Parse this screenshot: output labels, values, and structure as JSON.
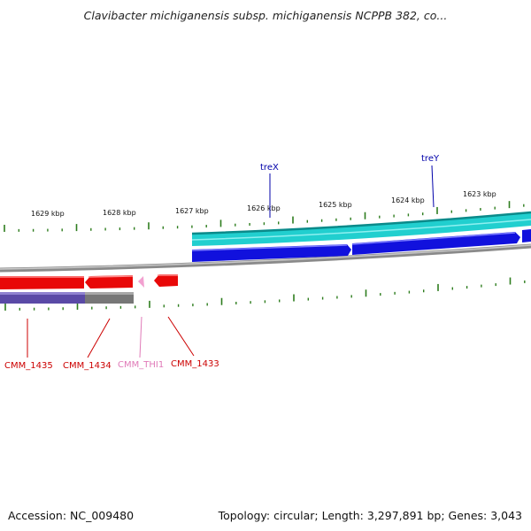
{
  "title": "Clavibacter michiganensis subsp. michiganensis NCPPB 382, co...",
  "footer": {
    "accession": "Accession: NC_009480",
    "summary": "Topology: circular; Length: 3,297,891 bp; Genes: 3,043"
  },
  "scale_labels": [
    "1629 kbp",
    "1628 kbp",
    "1627 kbp",
    "1626 kbp",
    "1625 kbp",
    "1624 kbp",
    "1623 kbp"
  ],
  "genes_top": [
    "treX",
    "treY"
  ],
  "genes_bottom": [
    "CMM_1435",
    "CMM_1434",
    "CMM_THI1",
    "CMM_1433"
  ],
  "colors": {
    "tick": "#2e7d1e",
    "cyan_track": "#21cfcf",
    "blue_gene": "#1111dd",
    "red_gene": "#e80808",
    "purple_track": "#5a4aa6",
    "pink_gene": "#f2a0d0",
    "backbone": "#8a8a8a",
    "label_red": "#cc0000",
    "label_blue": "#0000aa",
    "label_pink": "#e07ab8"
  }
}
